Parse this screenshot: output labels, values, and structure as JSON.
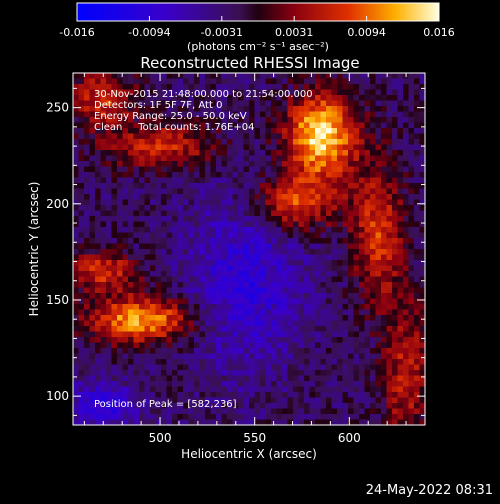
{
  "chart_data": {
    "type": "heatmap",
    "title": "Reconstructed RHESSI Image",
    "xlabel": "Heliocentric X (arcsec)",
    "ylabel": "Heliocentric Y (arcsec)",
    "xlim": [
      454,
      640
    ],
    "ylim": [
      85,
      268
    ],
    "x_ticks": [
      500,
      550,
      600
    ],
    "y_ticks": [
      100,
      150,
      200,
      250
    ],
    "colorbar": {
      "ticks": [
        "-0.016",
        "-0.0094",
        "-0.0031",
        "0.0031",
        "0.0094",
        "0.016"
      ],
      "range": [
        -0.016,
        0.016
      ],
      "unit_label": "(photons cm⁻² s⁻¹ asec⁻²)"
    },
    "annotations": [
      "30-Nov-2015 21:48:00.000 to 21:54:00.000",
      "Detectors: 1F 5F 7F, Att 0",
      "Energy Range: 25.0 - 50.0 keV",
      "Clean     Total counts: 1.76E+04"
    ],
    "peak_label": "Position of Peak = [582,236]",
    "peak": [
      582,
      236
    ],
    "grid": false
  },
  "footer": {
    "date": "24-May-2022 08:31"
  }
}
